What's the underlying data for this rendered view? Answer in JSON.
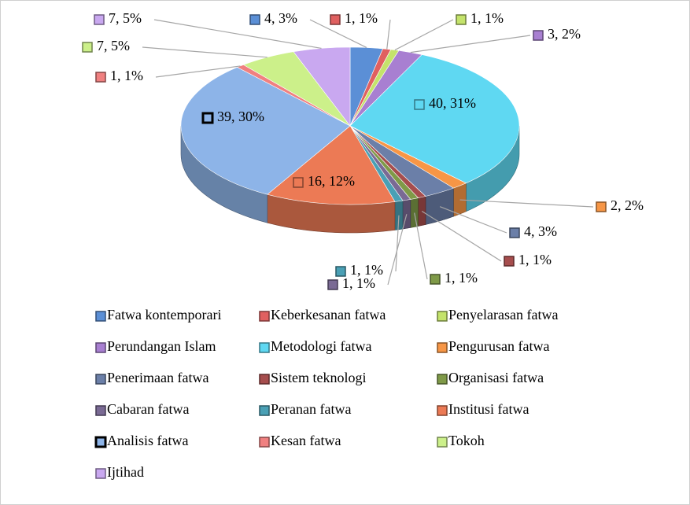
{
  "chart_data": {
    "type": "pie",
    "categories": [
      "Fatwa kontemporari",
      "Keberkesanan fatwa",
      "Penyelarasan fatwa",
      "Perundangan Islam",
      "Metodologi fatwa",
      "Pengurusan fatwa",
      "Penerimaan fatwa",
      "Sistem teknologi",
      "Organisasi fatwa",
      "Cabaran fatwa",
      "Peranan fatwa",
      "Institusi fatwa",
      "Analisis fatwa",
      "Kesan fatwa",
      "Tokoh",
      "Ijtihad"
    ],
    "values": [
      4,
      1,
      1,
      3,
      40,
      2,
      4,
      1,
      1,
      1,
      1,
      16,
      39,
      1,
      7,
      7
    ],
    "value_labels": [
      "4, 3%",
      "1, 1%",
      "1, 1%",
      "3, 2%",
      "40, 31%",
      "2, 2%",
      "4, 3%",
      "1, 1%",
      "1, 1%",
      "1, 1%",
      "1, 1%",
      "16, 12%",
      "39, 30%",
      "1, 1%",
      "7, 5%",
      "7, 5%"
    ],
    "colors": [
      "#5b8fd6",
      "#e06060",
      "#c4e36b",
      "#a87fd1",
      "#5fd8f2",
      "#f79646",
      "#6b7fa8",
      "#a64d4d",
      "#7f9a48",
      "#7a6a94",
      "#4aa0b5",
      "#ec7a55",
      "#8db4e8",
      "#f08080",
      "#ccf08a",
      "#c9a8f0"
    ],
    "legend": "bottom"
  }
}
